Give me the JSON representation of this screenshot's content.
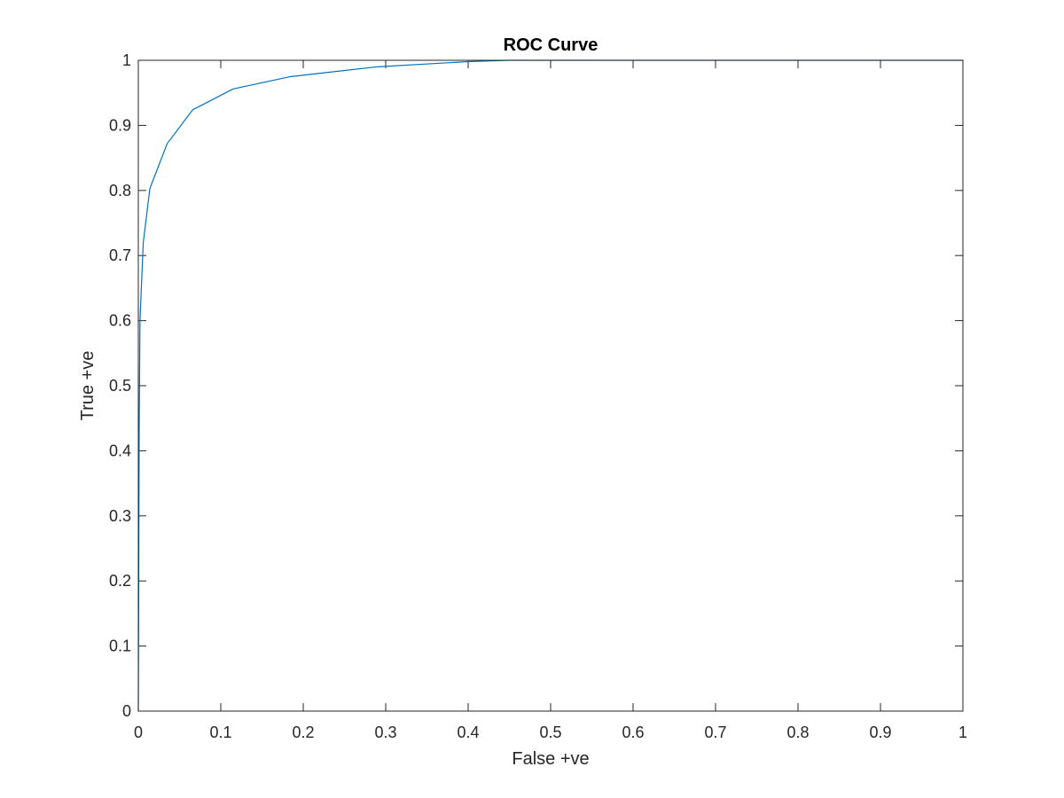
{
  "colors": {
    "background": "#ffffff",
    "axes": "#262626",
    "series": "#0072BD"
  },
  "chart_data": {
    "type": "line",
    "title": "ROC Curve",
    "xlabel": "False +ve",
    "ylabel": "True +ve",
    "xlim": [
      0,
      1
    ],
    "ylim": [
      0,
      1
    ],
    "grid": false,
    "box": true,
    "x_ticks": [
      0,
      0.1,
      0.2,
      0.3,
      0.4,
      0.5,
      0.6,
      0.7,
      0.8,
      0.9,
      1
    ],
    "x_tick_labels": [
      "0",
      "0.1",
      "0.2",
      "0.3",
      "0.4",
      "0.5",
      "0.6",
      "0.7",
      "0.8",
      "0.9",
      "1"
    ],
    "y_ticks": [
      0,
      0.1,
      0.2,
      0.3,
      0.4,
      0.5,
      0.6,
      0.7,
      0.8,
      0.9,
      1
    ],
    "y_tick_labels": [
      "0",
      "0.1",
      "0.2",
      "0.3",
      "0.4",
      "0.5",
      "0.6",
      "0.7",
      "0.8",
      "0.9",
      "1"
    ],
    "series": [
      {
        "color": "#0072BD",
        "x": [
          0,
          0.001,
          0.002,
          0.006,
          0.014,
          0.035,
          0.066,
          0.115,
          0.185,
          0.29,
          0.4,
          0.45,
          0.6,
          0.8,
          1
        ],
        "y": [
          0,
          0.42,
          0.6,
          0.72,
          0.803,
          0.872,
          0.924,
          0.956,
          0.975,
          0.99,
          0.998,
          1,
          1,
          1,
          1
        ]
      }
    ]
  }
}
